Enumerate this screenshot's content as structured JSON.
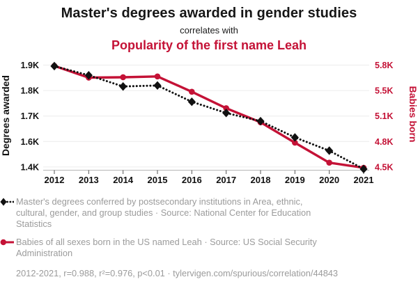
{
  "header": {
    "title": "Master's degrees awarded in gender studies",
    "connector": "correlates with",
    "subtitle": "Popularity of the first name Leah"
  },
  "colors": {
    "series_black": "#111111",
    "series_red": "#c41236",
    "legend_gray": "#9b9b9b",
    "gridline": "#ececec",
    "axis_line": "#b5b5b5"
  },
  "chart_data": {
    "type": "line",
    "x": [
      2012,
      2013,
      2014,
      2015,
      2016,
      2017,
      2018,
      2019,
      2020,
      2021
    ],
    "x_ticks": [
      "2012",
      "2013",
      "2014",
      "2015",
      "2016",
      "2017",
      "2018",
      "2019",
      "2020",
      "2021"
    ],
    "series": [
      {
        "name": "Master's degrees conferred in Area, ethnic, cultural, gender, and group studies",
        "axis": "left",
        "color": "#111111",
        "marker": "diamond",
        "line": "dotted",
        "values": [
          1895,
          1850,
          1795,
          1800,
          1720,
          1665,
          1625,
          1545,
          1480,
          1390
        ]
      },
      {
        "name": "Babies of all sexes born in the US named Leah",
        "axis": "right",
        "color": "#c41236",
        "marker": "circle",
        "line": "solid",
        "values": [
          5790,
          5640,
          5645,
          5655,
          5460,
          5250,
          5070,
          4810,
          4555,
          4490
        ]
      }
    ],
    "left_axis": {
      "label": "Degrees awarded",
      "ticks": [
        "1.9K",
        "1.8K",
        "1.7K",
        "1.6K",
        "1.4K"
      ],
      "range": [
        1400,
        1900
      ]
    },
    "right_axis": {
      "label": "Babies born",
      "ticks": [
        "5.8K",
        "5.5K",
        "5.1K",
        "4.8K",
        "4.5K"
      ],
      "range": [
        4500,
        5800
      ]
    },
    "grid": "horizontal",
    "legend_position": "below"
  },
  "legend": {
    "items": [
      {
        "marker": "black-diamond-dotted",
        "text": "Master's degrees conferred by postsecondary institutions in Area, ethnic, cultural, gender, and group studies · Source: National Center for Education Statistics"
      },
      {
        "marker": "red-circle-solid",
        "text": "Babies of all sexes born in the US named Leah · Source: US Social Security Administration"
      }
    ]
  },
  "footer": {
    "text": "2012-2021, r=0.988, r²=0.976, p<0.01 · tylervigen.com/spurious/correlation/44843"
  }
}
